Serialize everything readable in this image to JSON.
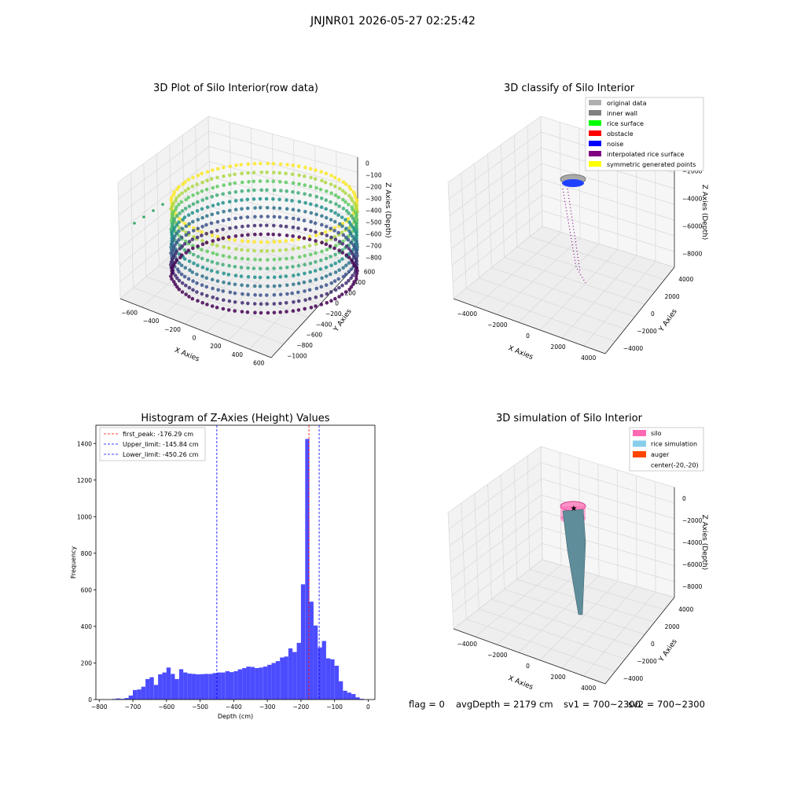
{
  "figure": {
    "suptitle": "JNJNR01 2026-05-27 02:25:42",
    "status": {
      "flag": "flag = 0",
      "avg_depth": "avgDepth = 2179 cm",
      "sv1": "sv1 = 700~2300",
      "sv2": "sv2 = 700~2300"
    }
  },
  "chart_data": [
    {
      "type": "scatter",
      "panel": "top-left",
      "projection": "3d",
      "title": "3D Plot of Silo Interior(row data)",
      "xlabel": "X Axies",
      "ylabel": "Y Axies",
      "zlabel": "Z Axies (Depth)",
      "xticks": [
        "−600",
        "−400",
        "−200",
        "0",
        "200",
        "400",
        "600"
      ],
      "yticks": [
        "−1000",
        "−800",
        "−600",
        "−400",
        "−200",
        "0",
        "200",
        "400",
        "600"
      ],
      "zticks": [
        "0",
        "−100",
        "−200",
        "−300",
        "−400",
        "−500",
        "−600",
        "−700",
        "−800"
      ],
      "xlim": [
        -700,
        650
      ],
      "ylim": [
        -1050,
        650
      ],
      "zlim": [
        -850,
        20
      ],
      "colormap": "viridis",
      "shape": "annular ring of scanned points, radius ~500, depth 0 to -800",
      "grid": true
    },
    {
      "type": "scatter",
      "panel": "top-right",
      "projection": "3d",
      "title": "3D classify of Silo Interior",
      "xlabel": "X Axies",
      "ylabel": "Y Axies",
      "zlabel": "Z Axies (Depth)",
      "xticks": [
        "−4000",
        "−2000",
        "0",
        "2000",
        "4000"
      ],
      "yticks": [
        "−4000",
        "−2000",
        "0",
        "2000",
        "4000"
      ],
      "zticks": [
        "−2000",
        "−4000",
        "−6000",
        "−8000"
      ],
      "xlim": [
        -5000,
        5000
      ],
      "ylim": [
        -5000,
        5000
      ],
      "zlim": [
        -9500,
        500
      ],
      "legend_position": "top-right",
      "legend": [
        {
          "label": "original data",
          "color": "#b0b0b0"
        },
        {
          "label": "inner wall",
          "color": "#808080"
        },
        {
          "label": "rice surface",
          "color": "#00ff00"
        },
        {
          "label": "obstacle",
          "color": "#ff0000"
        },
        {
          "label": "noise",
          "color": "#0000ff"
        },
        {
          "label": "interpolated rice surface",
          "color": "#800080"
        },
        {
          "label": "symmetric generated points",
          "color": "#ffff00"
        }
      ],
      "grid": true
    },
    {
      "type": "bar",
      "panel": "bottom-left",
      "title": "Histogram of Z-Axies (Height) Values",
      "xlabel": "Depth (cm)",
      "ylabel": "Frequency",
      "xlim": [
        -810,
        20
      ],
      "ylim": [
        0,
        1500
      ],
      "xticks": [
        -800,
        -700,
        -600,
        -500,
        -400,
        -300,
        -200,
        -100,
        0
      ],
      "yticks": [
        0,
        200,
        400,
        600,
        800,
        1000,
        1200,
        1400
      ],
      "bin_width": 12.5,
      "bar_color": "#0000ff",
      "bar_alpha": 0.7,
      "bins_start": [
        -762.5,
        -750,
        -737.5,
        -725,
        -712.5,
        -700,
        -687.5,
        -675,
        -662.5,
        -650,
        -637.5,
        -625,
        -612.5,
        -600,
        -587.5,
        -575,
        -562.5,
        -550,
        -537.5,
        -525,
        -512.5,
        -500,
        -487.5,
        -475,
        -462.5,
        -450,
        -437.5,
        -425,
        -412.5,
        -400,
        -387.5,
        -375,
        -362.5,
        -350,
        -337.5,
        -325,
        -312.5,
        -300,
        -287.5,
        -275,
        -262.5,
        -250,
        -237.5,
        -225,
        -212.5,
        -200,
        -187.5,
        -175,
        -162.5,
        -150,
        -137.5,
        -125,
        -112.5,
        -100,
        -87.5,
        -75,
        -62.5,
        -50,
        -37.5,
        -25,
        -12.5
      ],
      "values": [
        3,
        6,
        4,
        8,
        22,
        52,
        55,
        70,
        112,
        122,
        80,
        138,
        148,
        175,
        140,
        112,
        166,
        148,
        142,
        140,
        138,
        139,
        140,
        140,
        145,
        148,
        148,
        155,
        150,
        155,
        165,
        172,
        180,
        178,
        172,
        175,
        180,
        190,
        200,
        210,
        230,
        235,
        280,
        260,
        310,
        630,
        1425,
        535,
        405,
        285,
        320,
        225,
        220,
        185,
        100,
        48,
        38,
        30,
        12,
        4,
        0
      ],
      "vlines": [
        {
          "label": "first_peak: -176.29 cm",
          "x": -176.29,
          "color": "#ff0000"
        },
        {
          "label": "Upper_limit: -145.84 cm",
          "x": -145.84,
          "color": "#0000ff"
        },
        {
          "label": "Lower_limit: -450.26 cm",
          "x": -450.26,
          "color": "#0000ff"
        }
      ],
      "legend_position": "top-left"
    },
    {
      "type": "scatter",
      "panel": "bottom-right",
      "projection": "3d",
      "title": "3D simulation of Silo Interior",
      "xlabel": "X Axies",
      "ylabel": "Y Axies",
      "zlabel": "Z Axies (Depth)",
      "xticks": [
        "−4000",
        "−2000",
        "0",
        "2000",
        "4000"
      ],
      "yticks": [
        "−4000",
        "−2000",
        "0",
        "2000",
        "4000"
      ],
      "zticks": [
        "0",
        "−2000",
        "−4000",
        "−6000",
        "−8000"
      ],
      "xlim": [
        -5000,
        5000
      ],
      "ylim": [
        -5000,
        5000
      ],
      "zlim": [
        -9500,
        500
      ],
      "legend_position": "top-right",
      "legend": [
        {
          "label": "silo",
          "color": "#ff69b4"
        },
        {
          "label": "rice simulation",
          "color": "#87ceeb"
        },
        {
          "label": "auger",
          "color": "#ff4500"
        },
        {
          "label": "center(-20,-20)",
          "color": ""
        }
      ],
      "grid": true
    }
  ]
}
